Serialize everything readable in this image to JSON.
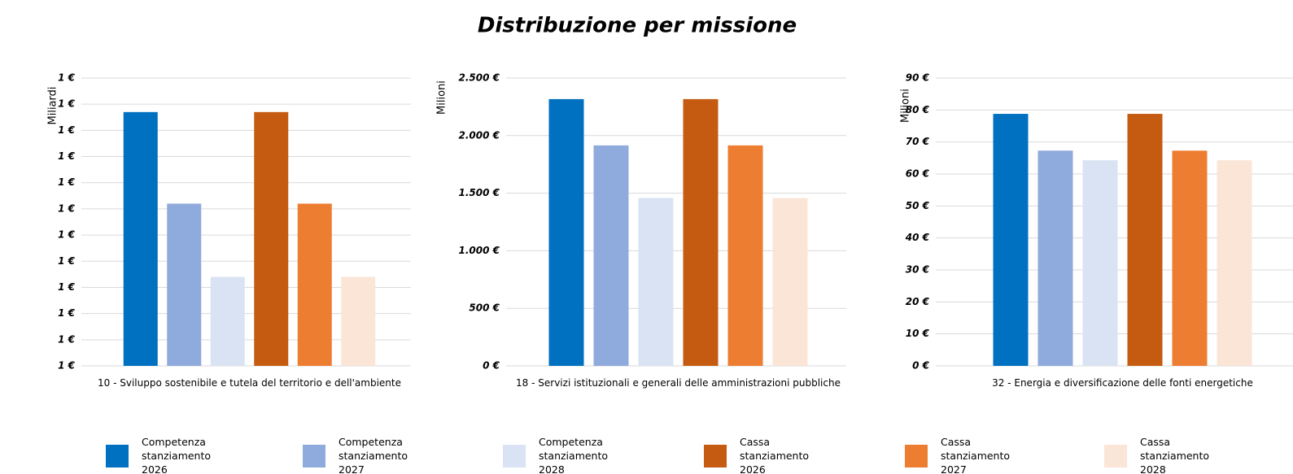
{
  "title": "Distribuzione per missione",
  "legend": [
    {
      "name": "Competenza stanziamento 2026",
      "color": "#0070c0"
    },
    {
      "name": "Competenza stanziamento 2027",
      "color": "#8faadc"
    },
    {
      "name": "Competenza stanziamento 2028",
      "color": "#dae3f3"
    },
    {
      "name": "Cassa stanziamento 2026",
      "color": "#c55a11"
    },
    {
      "name": "Cassa stanziamento 2027",
      "color": "#ed7d31"
    },
    {
      "name": "Cassa stanziamento 2028",
      "color": "#fbe5d6"
    }
  ],
  "chart_data": [
    {
      "type": "bar",
      "y_label": "Miliardi",
      "categories": [
        "10 - Sviluppo sostenibile e tutela del territorio e dell'ambiente"
      ],
      "series": [
        {
          "values": [
            1.397
          ]
        },
        {
          "values": [
            1.362
          ]
        },
        {
          "values": [
            1.334
          ]
        },
        {
          "values": [
            1.397
          ]
        },
        {
          "values": [
            1.362
          ]
        },
        {
          "values": [
            1.334
          ]
        }
      ],
      "ylim": [
        1.3,
        1.41
      ],
      "yticks": [
        {
          "value": 1.3,
          "label": "1 €"
        },
        {
          "value": 1.31,
          "label": "1 €"
        },
        {
          "value": 1.32,
          "label": "1 €"
        },
        {
          "value": 1.33,
          "label": "1 €"
        },
        {
          "value": 1.34,
          "label": "1 €"
        },
        {
          "value": 1.35,
          "label": "1 €"
        },
        {
          "value": 1.36,
          "label": "1 €"
        },
        {
          "value": 1.37,
          "label": "1 €"
        },
        {
          "value": 1.38,
          "label": "1 €"
        },
        {
          "value": 1.39,
          "label": "1 €"
        },
        {
          "value": 1.4,
          "label": "1 €"
        },
        {
          "value": 1.41,
          "label": "1 €"
        }
      ],
      "grid": true
    },
    {
      "type": "bar",
      "y_label": "Milioni",
      "categories": [
        "18 - Servizi istituzionali e generali delle amministrazioni pubbliche"
      ],
      "series": [
        {
          "values": [
            2317
          ]
        },
        {
          "values": [
            1915
          ]
        },
        {
          "values": [
            1458
          ]
        },
        {
          "values": [
            2317
          ]
        },
        {
          "values": [
            1915
          ]
        },
        {
          "values": [
            1458
          ]
        }
      ],
      "ylim": [
        0,
        2500
      ],
      "yticks": [
        {
          "value": 0,
          "label": "0 €"
        },
        {
          "value": 500,
          "label": "500 €"
        },
        {
          "value": 1000,
          "label": "1.000 €"
        },
        {
          "value": 1500,
          "label": "1.500 €"
        },
        {
          "value": 2000,
          "label": "2.000 €"
        },
        {
          "value": 2500,
          "label": "2.500 €"
        }
      ],
      "grid": true
    },
    {
      "type": "bar",
      "y_label": "Milioni",
      "categories": [
        "32 - Energia e diversificazione delle fonti energetiche"
      ],
      "series": [
        {
          "values": [
            78.8
          ]
        },
        {
          "values": [
            67.3
          ]
        },
        {
          "values": [
            64.3
          ]
        },
        {
          "values": [
            78.8
          ]
        },
        {
          "values": [
            67.3
          ]
        },
        {
          "values": [
            64.3
          ]
        }
      ],
      "ylim": [
        0,
        90
      ],
      "yticks": [
        {
          "value": 0,
          "label": "0 €"
        },
        {
          "value": 10,
          "label": "10 €"
        },
        {
          "value": 20,
          "label": "20 €"
        },
        {
          "value": 30,
          "label": "30 €"
        },
        {
          "value": 40,
          "label": "40 €"
        },
        {
          "value": 50,
          "label": "50 €"
        },
        {
          "value": 60,
          "label": "60 €"
        },
        {
          "value": 70,
          "label": "70 €"
        },
        {
          "value": 80,
          "label": "80 €"
        },
        {
          "value": 90,
          "label": "90 €"
        }
      ],
      "grid": true
    }
  ]
}
